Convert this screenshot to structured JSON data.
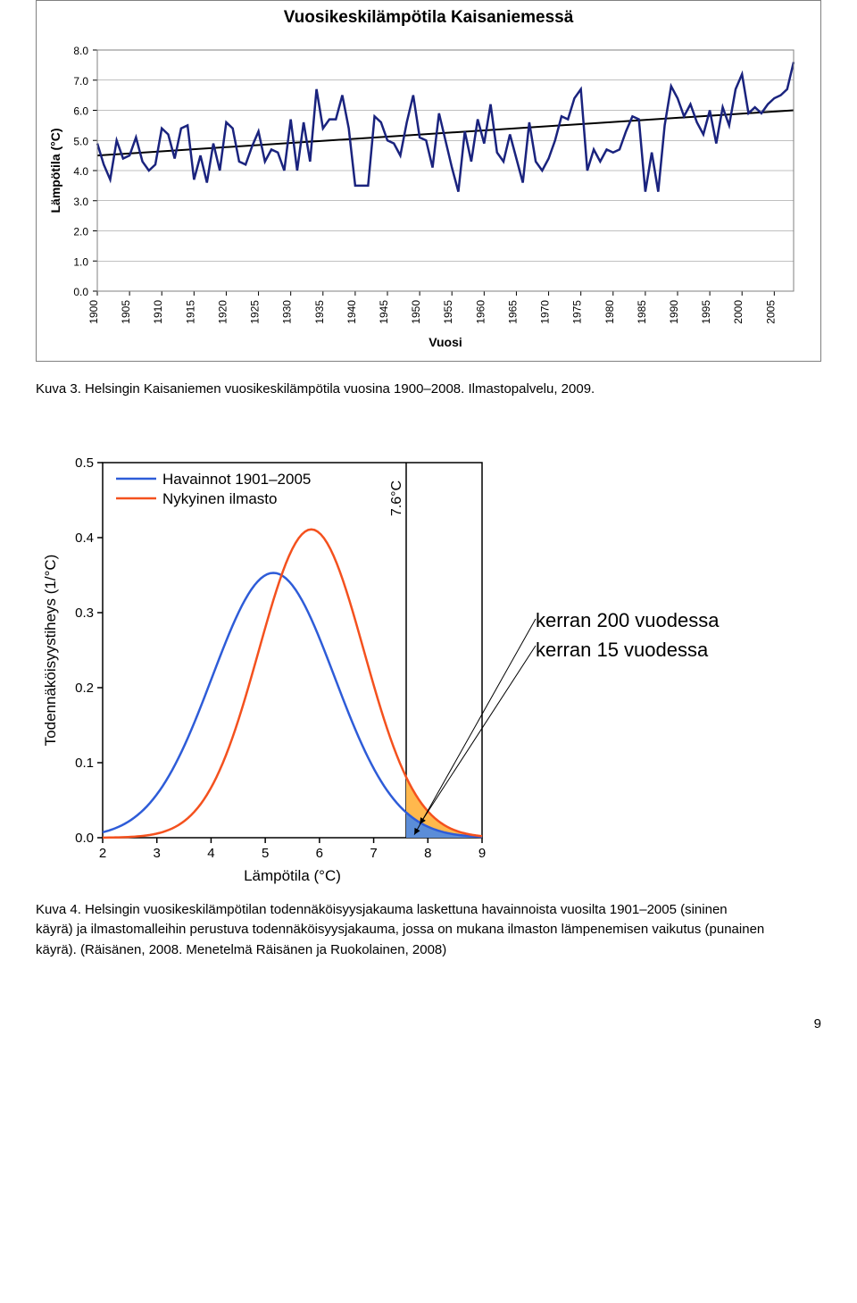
{
  "chart1": {
    "type": "line",
    "title": "Vuosikeskilämpötila Kaisaniemessä",
    "xlabel": "Vuosi",
    "ylabel": "Lämpötila (°C)",
    "ylim": [
      0.0,
      8.0
    ],
    "ytick_step": 1.0,
    "xlim": [
      1900,
      2008
    ],
    "xticks": [
      1900,
      1905,
      1910,
      1915,
      1920,
      1925,
      1930,
      1935,
      1940,
      1945,
      1950,
      1955,
      1960,
      1965,
      1970,
      1975,
      1980,
      1985,
      1990,
      1995,
      2000,
      2005
    ],
    "line_color": "#1a237e",
    "line_width": 2.5,
    "trend_color": "#000000",
    "trend_width": 2,
    "grid_color": "#808080",
    "background_color": "#ffffff",
    "border_color": "#808080",
    "title_fontsize": 19,
    "label_fontsize": 14,
    "tick_fontsize": 12,
    "trend": {
      "y_start": 4.5,
      "y_end": 6.0
    },
    "data_points": [
      [
        1900,
        4.9
      ],
      [
        1901,
        4.2
      ],
      [
        1902,
        3.7
      ],
      [
        1903,
        5.0
      ],
      [
        1904,
        4.4
      ],
      [
        1905,
        4.5
      ],
      [
        1906,
        5.1
      ],
      [
        1907,
        4.3
      ],
      [
        1908,
        4.0
      ],
      [
        1909,
        4.2
      ],
      [
        1910,
        5.4
      ],
      [
        1911,
        5.2
      ],
      [
        1912,
        4.4
      ],
      [
        1913,
        5.4
      ],
      [
        1914,
        5.5
      ],
      [
        1915,
        3.7
      ],
      [
        1916,
        4.5
      ],
      [
        1917,
        3.6
      ],
      [
        1918,
        4.9
      ],
      [
        1919,
        4.0
      ],
      [
        1920,
        5.6
      ],
      [
        1921,
        5.4
      ],
      [
        1922,
        4.3
      ],
      [
        1923,
        4.2
      ],
      [
        1924,
        4.8
      ],
      [
        1925,
        5.3
      ],
      [
        1926,
        4.3
      ],
      [
        1927,
        4.7
      ],
      [
        1928,
        4.6
      ],
      [
        1929,
        4.0
      ],
      [
        1930,
        5.7
      ],
      [
        1931,
        4.0
      ],
      [
        1932,
        5.6
      ],
      [
        1933,
        4.3
      ],
      [
        1934,
        6.7
      ],
      [
        1935,
        5.4
      ],
      [
        1936,
        5.7
      ],
      [
        1937,
        5.7
      ],
      [
        1938,
        6.5
      ],
      [
        1939,
        5.4
      ],
      [
        1940,
        3.5
      ],
      [
        1941,
        3.5
      ],
      [
        1942,
        3.5
      ],
      [
        1943,
        5.8
      ],
      [
        1944,
        5.6
      ],
      [
        1945,
        5.0
      ],
      [
        1946,
        4.9
      ],
      [
        1947,
        4.5
      ],
      [
        1948,
        5.6
      ],
      [
        1949,
        6.5
      ],
      [
        1950,
        5.1
      ],
      [
        1951,
        5.0
      ],
      [
        1952,
        4.1
      ],
      [
        1953,
        5.9
      ],
      [
        1954,
        5.0
      ],
      [
        1955,
        4.1
      ],
      [
        1956,
        3.3
      ],
      [
        1957,
        5.3
      ],
      [
        1958,
        4.3
      ],
      [
        1959,
        5.7
      ],
      [
        1960,
        4.9
      ],
      [
        1961,
        6.2
      ],
      [
        1962,
        4.6
      ],
      [
        1963,
        4.3
      ],
      [
        1964,
        5.2
      ],
      [
        1965,
        4.4
      ],
      [
        1966,
        3.6
      ],
      [
        1967,
        5.6
      ],
      [
        1968,
        4.3
      ],
      [
        1969,
        4.0
      ],
      [
        1970,
        4.4
      ],
      [
        1971,
        5.0
      ],
      [
        1972,
        5.8
      ],
      [
        1973,
        5.7
      ],
      [
        1974,
        6.4
      ],
      [
        1975,
        6.7
      ],
      [
        1976,
        4.0
      ],
      [
        1977,
        4.7
      ],
      [
        1978,
        4.3
      ],
      [
        1979,
        4.7
      ],
      [
        1980,
        4.6
      ],
      [
        1981,
        4.7
      ],
      [
        1982,
        5.3
      ],
      [
        1983,
        5.8
      ],
      [
        1984,
        5.7
      ],
      [
        1985,
        3.3
      ],
      [
        1986,
        4.6
      ],
      [
        1987,
        3.3
      ],
      [
        1988,
        5.5
      ],
      [
        1989,
        6.8
      ],
      [
        1990,
        6.4
      ],
      [
        1991,
        5.8
      ],
      [
        1992,
        6.2
      ],
      [
        1993,
        5.6
      ],
      [
        1994,
        5.2
      ],
      [
        1995,
        6.0
      ],
      [
        1996,
        4.9
      ],
      [
        1997,
        6.1
      ],
      [
        1998,
        5.5
      ],
      [
        1999,
        6.7
      ],
      [
        2000,
        7.2
      ],
      [
        2001,
        5.9
      ],
      [
        2002,
        6.1
      ],
      [
        2003,
        5.9
      ],
      [
        2004,
        6.2
      ],
      [
        2005,
        6.4
      ],
      [
        2006,
        6.5
      ],
      [
        2007,
        6.7
      ],
      [
        2008,
        7.6
      ]
    ]
  },
  "caption1": "Kuva 3. Helsingin Kaisaniemen vuosikeskilämpötila vuosina 1900–2008. Ilmastopalvelu, 2009.",
  "chart2": {
    "type": "density",
    "xlabel": "Lämpötila (°C)",
    "ylabel": "Todennäköisyystiheys (1/°C)",
    "xlim": [
      2,
      9
    ],
    "ylim": [
      0,
      0.5
    ],
    "xticks": [
      2,
      3,
      4,
      5,
      6,
      7,
      8,
      9
    ],
    "yticks": [
      0,
      0.1,
      0.2,
      0.3,
      0.4,
      0.5
    ],
    "legend": {
      "items": [
        {
          "label": "Havainnot 1901–2005",
          "color": "#2e5cd8"
        },
        {
          "label": "Nykyinen ilmasto",
          "color": "#f4511e"
        }
      ],
      "fontsize": 17
    },
    "threshold_label": "7.6°C",
    "threshold_value": 7.6,
    "curve1_color": "#2e5cd8",
    "curve2_color": "#f4511e",
    "line_width": 2.5,
    "fill_color_curve2_tail": "#ffb84d",
    "fill_color_curve1_tail": "#5b8dd8",
    "background_color": "#ffffff",
    "border_color": "#000000",
    "label_fontsize": 17,
    "tick_fontsize": 15,
    "curve1": {
      "mean": 5.15,
      "sd": 1.13,
      "peak": 0.353
    },
    "curve2": {
      "mean": 5.85,
      "sd": 0.97,
      "peak": 0.411
    }
  },
  "annotations": {
    "line1": "kerran 200 vuodessa",
    "line2": "kerran 15 vuodessa",
    "fontsize": 22
  },
  "caption2": "Kuva 4. Helsingin vuosikeskilämpötilan todennäköisyysjakauma laskettuna havainnoista vuosilta 1901–2005 (sininen käyrä) ja ilmastomalleihin perustuva todennäköisyysjakauma, jossa on mukana ilmaston lämpenemisen vaikutus (punainen käyrä). (Räisänen, 2008. Menetelmä Räisänen ja Ruokolainen, 2008)",
  "page_number": "9"
}
